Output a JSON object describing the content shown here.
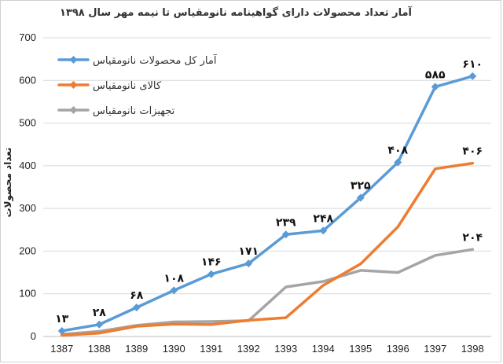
{
  "chart_data": {
    "type": "line",
    "title": "آمار تعداد محصولات دارای گواهینامه نانومقیاس تا نیمه مهر سال ۱۳۹۸",
    "xlabel": "",
    "ylabel": "تعداد محصولات",
    "ylim": [
      0,
      700
    ],
    "yticks": [
      0,
      100,
      200,
      300,
      400,
      500,
      600,
      700
    ],
    "grid": true,
    "legend": "top-left",
    "categories": [
      "1387",
      "1388",
      "1389",
      "1390",
      "1391",
      "1392",
      "1393",
      "1394",
      "1395",
      "1396",
      "1397",
      "1398"
    ],
    "series": [
      {
        "name": "آمار کل محصولات نانومقیاس",
        "color": "#5b9bd5",
        "marker": "diamond",
        "values": [
          13,
          28,
          68,
          108,
          146,
          171,
          239,
          248,
          325,
          408,
          585,
          610
        ],
        "data_labels": [
          "۱۳",
          "۲۸",
          "۶۸",
          "۱۰۸",
          "۱۴۶",
          "۱۷۱",
          "۲۳۹",
          "۲۴۸",
          "۳۲۵",
          "۴۰۸",
          "۵۸۵",
          "۶۱۰"
        ]
      },
      {
        "name": "کالای نانومقیاس",
        "color": "#ed7d31",
        "marker": "none",
        "values": [
          3,
          8,
          24,
          29,
          28,
          38,
          44,
          120,
          170,
          257,
          393,
          406
        ],
        "data_labels": [
          "",
          "",
          "",
          "",
          "",
          "",
          "",
          "",
          "",
          "",
          "",
          "۴۰۶"
        ]
      },
      {
        "name": "تجهیزات نانومقیاس",
        "color": "#a5a5a5",
        "marker": "none",
        "values": [
          5,
          12,
          26,
          34,
          35,
          37,
          116,
          129,
          155,
          150,
          190,
          204
        ],
        "data_labels": [
          "",
          "",
          "",
          "",
          "",
          "",
          "",
          "",
          "",
          "",
          "",
          "۲۰۴"
        ]
      }
    ]
  }
}
